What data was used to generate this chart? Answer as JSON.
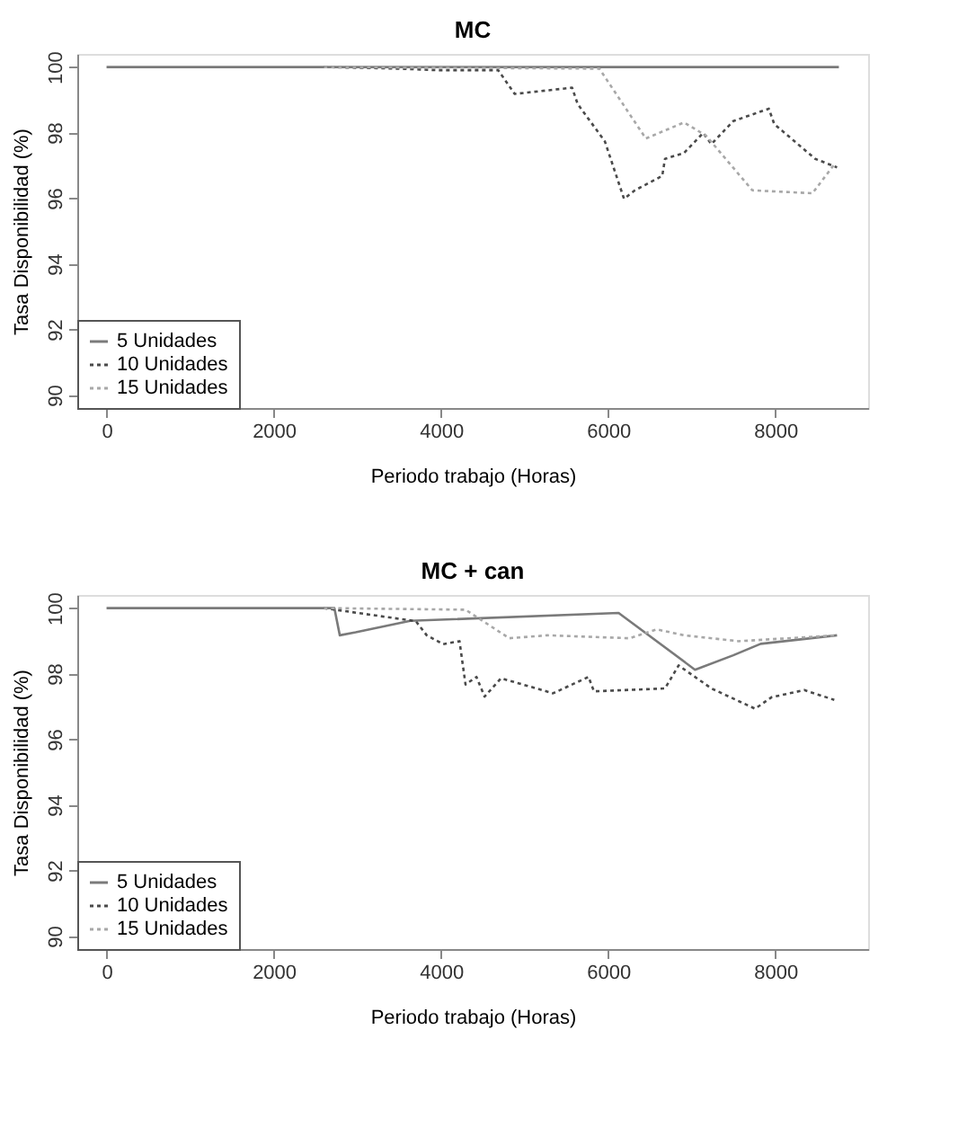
{
  "chart_data": [
    {
      "type": "line",
      "title": "MC",
      "xlabel": "Periodo trabajo (Horas)",
      "ylabel": "Tasa Disponibilidad (%)",
      "xlim": [
        -350,
        9110
      ],
      "ylim": [
        89.6,
        100.4
      ],
      "xticks": [
        0,
        2000,
        4000,
        6000,
        8000
      ],
      "yticks": [
        90,
        92,
        94,
        96,
        98,
        100
      ],
      "grid": false,
      "legend": "bottom left",
      "marker": "none",
      "series": [
        {
          "name": "5 Unidades",
          "color": "#7a7a7a",
          "line_style": "solid",
          "x": [
            0,
            8760
          ],
          "values": [
            100,
            100
          ]
        },
        {
          "name": "10 Unidades",
          "color": "#4a4a4a",
          "line_style": "dotted",
          "x": [
            2600,
            3500,
            4000,
            4686,
            4882,
            5569,
            5634,
            5961,
            6190,
            6320,
            6647,
            6680,
            6908,
            7137,
            7235,
            7496,
            7922,
            7987,
            8477,
            8738
          ],
          "values": [
            100,
            99.95,
            99.9,
            99.9,
            99.18,
            99.37,
            98.88,
            97.73,
            95.98,
            96.24,
            96.68,
            97.2,
            97.38,
            97.99,
            97.65,
            98.35,
            98.73,
            98.26,
            97.2,
            96.94
          ]
        },
        {
          "name": "15 Unidades",
          "color": "#a8a8a8",
          "line_style": "dotted",
          "x": [
            2600,
            5895,
            6451,
            6908,
            7170,
            7725,
            8444,
            8705
          ],
          "values": [
            100,
            99.95,
            97.82,
            98.31,
            97.91,
            96.24,
            96.15,
            97.03
          ]
        }
      ]
    },
    {
      "type": "line",
      "title": "MC + can",
      "xlabel": "Periodo trabajo (Horas)",
      "ylabel": "Tasa Disponibilidad (%)",
      "xlim": [
        -350,
        9110
      ],
      "ylim": [
        89.6,
        100.4
      ],
      "xticks": [
        0,
        2000,
        4000,
        6000,
        8000
      ],
      "yticks": [
        90,
        92,
        94,
        96,
        98,
        100
      ],
      "grid": false,
      "legend": "bottom left",
      "marker": "none",
      "series": [
        {
          "name": "5 Unidades",
          "color": "#7a7a7a",
          "line_style": "solid",
          "x": [
            0,
            2725,
            2790,
            2980,
            3634,
            6125,
            7039,
            7496,
            7824,
            8738
          ],
          "values": [
            100,
            100,
            99.17,
            99.26,
            99.61,
            99.85,
            98.12,
            98.56,
            98.91,
            99.17
          ]
        },
        {
          "name": "10 Unidades",
          "color": "#4a4a4a",
          "line_style": "dotted",
          "x": [
            2600,
            3700,
            3830,
            4026,
            4222,
            4294,
            4425,
            4522,
            4718,
            5209,
            5340,
            5765,
            5830,
            6680,
            6843,
            7235,
            7758,
            7954,
            8346,
            8705
          ],
          "values": [
            100,
            99.6,
            99.17,
            98.9,
            98.99,
            97.67,
            97.9,
            97.3,
            97.86,
            97.5,
            97.4,
            97.9,
            97.46,
            97.55,
            98.25,
            97.55,
            96.93,
            97.28,
            97.5,
            97.2
          ]
        },
        {
          "name": "15 Unidades",
          "color": "#a8a8a8",
          "line_style": "dotted",
          "x": [
            2600,
            4294,
            4817,
            5275,
            6255,
            6582,
            6908,
            7562,
            8738
          ],
          "values": [
            100,
            99.95,
            99.08,
            99.17,
            99.08,
            99.35,
            99.17,
            98.99,
            99.17
          ]
        }
      ]
    }
  ]
}
